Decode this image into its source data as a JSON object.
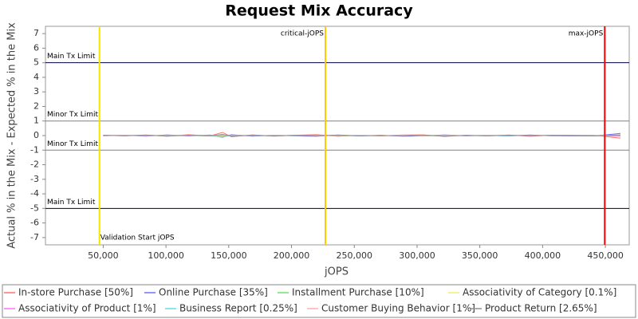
{
  "chart_data": {
    "type": "line",
    "title": "Request Mix Accuracy",
    "x_label": "jOPS",
    "y_label": "Actual % in the Mix - Expected % in the Mix",
    "xlim": [
      4000,
      469000
    ],
    "ylim": [
      -7.5,
      7.5
    ],
    "xticks": [
      {
        "value": 50000,
        "label": "50,000"
      },
      {
        "value": 100000,
        "label": "100,000"
      },
      {
        "value": 150000,
        "label": "150,000"
      },
      {
        "value": 200000,
        "label": "200,000"
      },
      {
        "value": 250000,
        "label": "250,000"
      },
      {
        "value": 300000,
        "label": "300,000"
      },
      {
        "value": 350000,
        "label": "350,000"
      },
      {
        "value": 400000,
        "label": "400,000"
      },
      {
        "value": 450000,
        "label": "450,000"
      }
    ],
    "yticks": [
      -7,
      -6,
      -5,
      -4,
      -3,
      -2,
      -1,
      0,
      1,
      2,
      3,
      4,
      5,
      6,
      7
    ],
    "markers": [
      {
        "label": "Validation Start jOPS",
        "value": 47000,
        "color": "#f2e600"
      },
      {
        "label": "critical-jOPS",
        "value": 227000,
        "color": "#ffc800"
      },
      {
        "label": "max-jOPS",
        "value": 449500,
        "color": "#ff0000"
      }
    ],
    "limits": [
      {
        "label": "Main Tx Limit",
        "value": 5,
        "color": "#000040"
      },
      {
        "label": "Minor Tx Limit",
        "value": 1,
        "color": "#808080"
      },
      {
        "label": "Minor Tx Limit",
        "value": -1,
        "color": "#808080"
      },
      {
        "label": "Main Tx Limit",
        "value": -5,
        "color": "#000040"
      }
    ],
    "x": [
      50000,
      67000,
      84000,
      101000,
      118000,
      135000,
      145000,
      152000,
      169000,
      186000,
      203000,
      220000,
      237000,
      254000,
      271000,
      288000,
      305000,
      322000,
      339000,
      356000,
      373000,
      390000,
      407000,
      441000,
      462000
    ],
    "series": [
      {
        "name": "In-store Purchase [50%]",
        "color": "#ff7070",
        "values": [
          0.03,
          -0.02,
          0.04,
          -0.05,
          0.06,
          -0.03,
          0.22,
          -0.08,
          0.05,
          -0.04,
          0.03,
          0.06,
          -0.05,
          0.02,
          -0.03,
          0.04,
          0.05,
          -0.06,
          0.03,
          -0.02,
          0.04,
          -0.05,
          0.03,
          0.02,
          -0.18
        ]
      },
      {
        "name": "Online Purchase [35%]",
        "color": "#7070ff",
        "values": [
          -0.02,
          0.03,
          -0.04,
          0.05,
          -0.03,
          0.04,
          -0.12,
          0.06,
          -0.04,
          0.03,
          -0.02,
          -0.05,
          0.04,
          -0.03,
          0.02,
          -0.04,
          -0.03,
          0.05,
          -0.02,
          0.03,
          -0.03,
          0.04,
          -0.02,
          -0.03,
          0.15
        ]
      },
      {
        "name": "Installment Purchase [10%]",
        "color": "#70e070",
        "values": [
          0.01,
          -0.01,
          0.02,
          -0.02,
          0.01,
          -0.02,
          -0.06,
          0.02,
          -0.01,
          0.01,
          -0.01,
          0.02,
          -0.02,
          0.01,
          -0.01,
          0.01,
          -0.02,
          0.01,
          -0.01,
          0.02,
          -0.01,
          0.01,
          -0.01,
          0.01,
          0.04
        ]
      },
      {
        "name": "Associativity of Category [0.1%]",
        "color": "#f0f070",
        "values": [
          0,
          0.01,
          0,
          -0.01,
          0,
          0.01,
          0,
          -0.01,
          0,
          0.01,
          0,
          0,
          -0.01,
          0,
          0.01,
          0,
          0,
          -0.01,
          0,
          0.01,
          0,
          0,
          0.01,
          0,
          0
        ]
      },
      {
        "name": "Associativity of Product [1%]",
        "color": "#ff70ff",
        "values": [
          0.01,
          -0.01,
          0.01,
          0,
          -0.01,
          0.01,
          0.03,
          -0.02,
          0.01,
          -0.01,
          0.01,
          0,
          -0.01,
          0.01,
          0,
          -0.01,
          0.01,
          0,
          -0.01,
          0.01,
          0,
          -0.01,
          0.01,
          0,
          -0.03
        ]
      },
      {
        "name": "Business Report [0.25%]",
        "color": "#60e0e0",
        "values": [
          0,
          0.01,
          -0.01,
          0.01,
          0,
          -0.01,
          -0.1,
          0.01,
          0,
          -0.01,
          0.01,
          0,
          0.01,
          -0.01,
          0,
          0.01,
          -0.01,
          0,
          0.01,
          0,
          -0.01,
          0.01,
          0,
          -0.01,
          0.02
        ]
      },
      {
        "name": "Customer Buying Behavior [1%]",
        "color": "#ffb0b0",
        "values": [
          -0.01,
          0.02,
          -0.01,
          0.01,
          0.02,
          -0.02,
          0.05,
          -0.03,
          0.02,
          -0.01,
          0.02,
          -0.02,
          0.01,
          0.02,
          -0.01,
          0.01,
          -0.02,
          0.02,
          -0.01,
          0.01,
          0.02,
          -0.01,
          0.01,
          -0.02,
          -0.06
        ]
      },
      {
        "name": "Product Return [2.65%]",
        "color": "#909090",
        "values": [
          0.02,
          -0.01,
          0.03,
          -0.03,
          0.02,
          -0.02,
          0.08,
          -0.04,
          0.02,
          -0.03,
          0.02,
          -0.01,
          0.03,
          -0.02,
          0.01,
          -0.02,
          0.02,
          -0.03,
          0.01,
          -0.02,
          0.02,
          -0.01,
          0.02,
          -0.03,
          0.05
        ]
      }
    ]
  }
}
